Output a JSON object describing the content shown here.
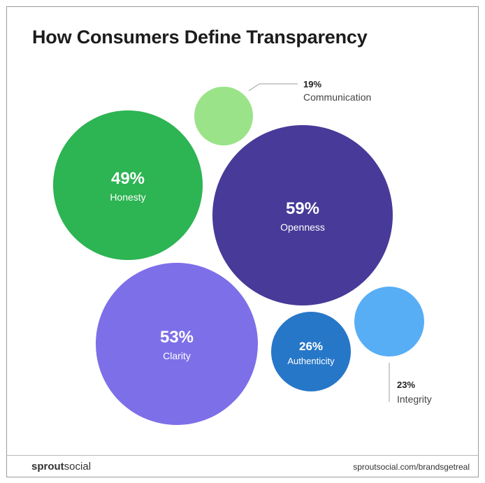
{
  "chart_data": {
    "type": "bubble",
    "title": "How Consumers Define Transparency",
    "series": [
      {
        "label": "Communication",
        "value": 19,
        "value_text": "19%",
        "color": "#9ae389",
        "label_position": "outside"
      },
      {
        "label": "Honesty",
        "value": 49,
        "value_text": "49%",
        "color": "#2db453",
        "label_position": "inside"
      },
      {
        "label": "Openness",
        "value": 59,
        "value_text": "59%",
        "color": "#473a98",
        "label_position": "inside"
      },
      {
        "label": "Clarity",
        "value": 53,
        "value_text": "53%",
        "color": "#7d6fe8",
        "label_position": "inside"
      },
      {
        "label": "Authenticity",
        "value": 26,
        "value_text": "26%",
        "color": "#2777c8",
        "label_position": "inside"
      },
      {
        "label": "Integrity",
        "value": 23,
        "value_text": "23%",
        "color": "#58aef5",
        "label_position": "outside"
      }
    ]
  },
  "footer": {
    "brand_bold": "sprout",
    "brand_regular": "social",
    "url": "sproutsocial.com/brandsgetreal"
  }
}
